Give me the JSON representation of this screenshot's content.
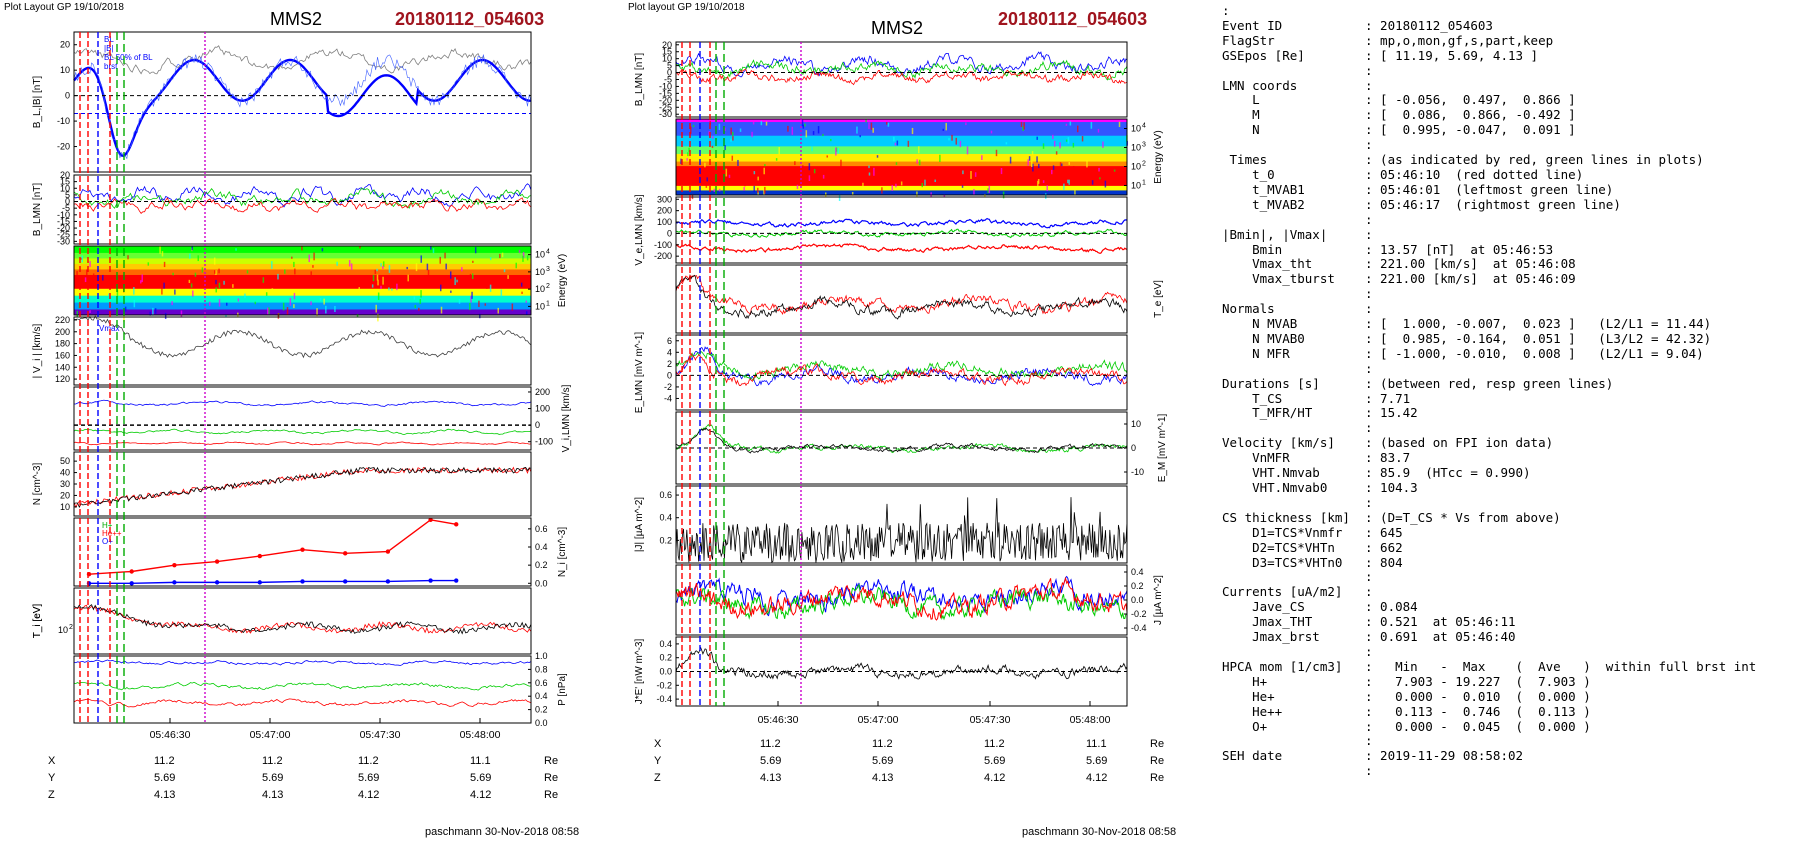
{
  "left_panel": {
    "header": "Plot Layout GP 19/10/2018",
    "spacecraft": "MMS2",
    "event": "20180112_054603",
    "footer": "paschmann 30-Nov-2018 08:58",
    "time_ticks": [
      "05:46:30",
      "05:47:00",
      "05:47:30",
      "05:48:00"
    ],
    "coords": {
      "rows": [
        {
          "label": "X",
          "values": [
            "11.2",
            "11.2",
            "11.2",
            "11.1"
          ],
          "unit": "Re"
        },
        {
          "label": "Y",
          "values": [
            "5.69",
            "5.69",
            "5.69",
            "5.69"
          ],
          "unit": "Re"
        },
        {
          "label": "Z",
          "values": [
            "4.13",
            "4.13",
            "4.12",
            "4.12"
          ],
          "unit": "Re"
        }
      ]
    }
  },
  "right_panel": {
    "header": "Plot layout GP 19/10/2018",
    "spacecraft": "MMS2",
    "event": "20180112_054603",
    "footer": "paschmann 30-Nov-2018 08:58",
    "time_ticks": [
      "05:46:30",
      "05:47:00",
      "05:47:30",
      "05:48:00"
    ],
    "coords": {
      "rows": [
        {
          "label": "X",
          "values": [
            "11.2",
            "11.2",
            "11.2",
            "11.1"
          ],
          "unit": "Re"
        },
        {
          "label": "Y",
          "values": [
            "5.69",
            "5.69",
            "5.69",
            "5.69"
          ],
          "unit": "Re"
        },
        {
          "label": "Z",
          "values": [
            "4.13",
            "4.13",
            "4.12",
            "4.12"
          ],
          "unit": "Re"
        }
      ]
    }
  },
  "colors": {
    "event_red": "#a0141e",
    "blue": "#0000ff",
    "red": "#ff0000",
    "green": "#00cc00",
    "magenta": "#cc00cc",
    "gray": "#808080"
  },
  "chart_data": [
    {
      "type": "line",
      "panel": "left",
      "ylabel": "B_L,|B| [nT]",
      "yticks": [
        "20",
        "10",
        "0",
        "-10",
        "-20"
      ],
      "ylim": [
        -30,
        25
      ],
      "series": [
        {
          "name": "BL",
          "color": "blue",
          "smooth": true
        },
        {
          "name": "|B|",
          "color": "gray"
        }
      ],
      "legend": [
        "BL",
        "|B|",
        "BL 50% of BL",
        "brst"
      ]
    },
    {
      "type": "line",
      "panel": "left",
      "ylabel": "B_LMN [nT]",
      "yticks": [
        "20",
        "15",
        "10",
        "5",
        "0",
        "-5",
        "-10",
        "-15",
        "-20",
        "-25",
        "-30"
      ],
      "ylim": [
        -32,
        20
      ],
      "series": [
        {
          "name": "L",
          "color": "blue"
        },
        {
          "name": "M",
          "color": "green"
        },
        {
          "name": "N",
          "color": "red"
        }
      ]
    },
    {
      "type": "heatmap",
      "panel": "left",
      "ylabel": "Energy (eV)",
      "yticks": [
        "10^4",
        "10^3",
        "10^2",
        "10^1"
      ]
    },
    {
      "type": "line",
      "panel": "left",
      "ylabel": "| V_i | [km/s]",
      "yticks": [
        "220",
        "200",
        "180",
        "160",
        "140",
        "120"
      ],
      "ylim": [
        110,
        225
      ],
      "legend": [
        "Vmax"
      ]
    },
    {
      "type": "line",
      "panel": "left",
      "ylabel": "V_i,LMN [km/s]",
      "yticks": [
        "200",
        "100",
        "0",
        "-100"
      ],
      "ylim": [
        -150,
        230
      ]
    },
    {
      "type": "line",
      "panel": "left",
      "ylabel": "N [cm^-3]",
      "yticks": [
        "50",
        "40",
        "30",
        "20",
        "10"
      ],
      "ylim": [
        2,
        58
      ]
    },
    {
      "type": "line",
      "panel": "left",
      "ylabel": "N_i [cm^-3]",
      "yticks": [
        "0.6",
        "0.4",
        "0.2",
        "0.0"
      ],
      "ylim": [
        -0.03,
        0.72
      ],
      "legend": [
        "H+",
        "He++",
        "O+"
      ],
      "series": [
        {
          "name": "He++",
          "color": "red",
          "x": [
            0,
            0.1,
            0.2,
            0.3,
            0.4,
            0.5,
            0.6,
            0.7,
            0.8,
            0.86
          ],
          "y": [
            0.1,
            0.13,
            0.2,
            0.24,
            0.3,
            0.37,
            0.33,
            0.35,
            0.7,
            0.65
          ]
        },
        {
          "name": "O+",
          "color": "blue",
          "x": [
            0,
            0.1,
            0.2,
            0.3,
            0.4,
            0.5,
            0.6,
            0.7,
            0.8,
            0.86
          ],
          "y": [
            0.0,
            0.0,
            0.01,
            0.01,
            0.01,
            0.02,
            0.02,
            0.02,
            0.03,
            0.03
          ]
        }
      ]
    },
    {
      "type": "line",
      "panel": "left",
      "ylabel": "T_i [eV]",
      "yticks": [
        "10^2"
      ]
    },
    {
      "type": "line",
      "panel": "left",
      "ylabel": "P [nPa]",
      "yticks": [
        "1.0",
        "0.8",
        "0.6",
        "0.4",
        "0.2",
        "0.0"
      ],
      "ylim": [
        0,
        1.0
      ]
    },
    {
      "type": "line",
      "panel": "right",
      "ylabel": "B_LMN [nT]",
      "yticks": [
        "20",
        "15",
        "10",
        "5",
        "0",
        "-5",
        "-10",
        "-15",
        "-20",
        "-25",
        "-30"
      ],
      "ylim": [
        -32,
        22
      ]
    },
    {
      "type": "heatmap",
      "panel": "right",
      "ylabel": "Energy (eV)",
      "yticks": [
        "10^4",
        "10^3",
        "10^2",
        "10^1"
      ]
    },
    {
      "type": "line",
      "panel": "right",
      "ylabel": "V_e,LMN [km/s]",
      "yticks": [
        "300",
        "200",
        "100",
        "0",
        "-100",
        "-200"
      ],
      "ylim": [
        -260,
        320
      ]
    },
    {
      "type": "line",
      "panel": "right",
      "ylabel": "T_e [eV]",
      "yticks": []
    },
    {
      "type": "line",
      "panel": "right",
      "ylabel": "E_LMN [mV m^-1]",
      "yticks": [
        "6",
        "4",
        "2",
        "0",
        "-2",
        "-4"
      ],
      "ylim": [
        -6,
        7
      ]
    },
    {
      "type": "line",
      "panel": "right",
      "ylabel": "E_M [mV m^-1]",
      "yticks": [
        "10",
        "0",
        "-10"
      ],
      "ylim": [
        -15,
        15
      ]
    },
    {
      "type": "line",
      "panel": "right",
      "ylabel": "|J| [µA m^-2]",
      "yticks": [
        "0.6",
        "0.4",
        "0.2"
      ],
      "ylim": [
        0,
        0.68
      ]
    },
    {
      "type": "line",
      "panel": "right",
      "ylabel": "J [µA m^-2]",
      "yticks": [
        "0.4",
        "0.2",
        "0.0",
        "-0.2",
        "-0.4"
      ],
      "ylim": [
        -0.5,
        0.5
      ]
    },
    {
      "type": "line",
      "panel": "right",
      "ylabel": "J*E' [nW m^-3]",
      "yticks": [
        "0.4",
        "0.2",
        "0.0",
        "-0.2",
        "-0.4"
      ],
      "ylim": [
        -0.5,
        0.5
      ]
    }
  ],
  "info_lines": [
    ":",
    "Event ID           : 20180112_054603",
    "FlagStr            : mp,o,mon,gf,s,part,keep",
    "GSEpos [Re]        : [ 11.19, 5.69, 4.13 ]",
    "                   :",
    "LMN coords         :",
    "    L              : [ -0.056,  0.497,  0.866 ]",
    "    M              : [  0.086,  0.866, -0.492 ]",
    "    N              : [  0.995, -0.047,  0.091 ]",
    "                   :",
    " Times             : (as indicated by red, green lines in plots)",
    "    t_0            : 05:46:10  (red dotted line)",
    "    t_MVAB1        : 05:46:01  (leftmost green line)",
    "    t_MVAB2        : 05:46:17  (rightmost green line)",
    "                   :",
    "|Bmin|, |Vmax|     :",
    "    Bmin           : 13.57 [nT]  at 05:46:53",
    "    Vmax_tht       : 221.00 [km/s]  at 05:46:08",
    "    Vmax_tburst    : 221.00 [km/s]  at 05:46:09",
    "                   :",
    "Normals            :",
    "    N MVAB         : [  1.000, -0.007,  0.023 ]   (L2/L1 = 11.44)",
    "    N MVAB0        : [  0.985, -0.164,  0.051 ]   (L3/L2 = 42.32)",
    "    N MFR          : [ -1.000, -0.010,  0.008 ]   (L2/L1 = 9.04)",
    "                   :",
    "Durations [s]      : (between red, resp green lines)",
    "    T_CS           : 7.71",
    "    T_MFR/HT       : 15.42",
    "                   :",
    "Velocity [km/s]    : (based on FPI ion data)",
    "    VnMFR          : 83.7",
    "    VHT.Nmvab      : 85.9  (HTcc = 0.990)",
    "    VHT.Nmvab0     : 104.3",
    "                   :",
    "CS thickness [km]  : (D=T_CS * Vs from above)",
    "    D1=TCS*Vnmfr   : 645",
    "    D2=TCS*VHTn    : 662",
    "    D3=TCS*VHTn0   : 804",
    "                   :",
    "Currents [uA/m2]   :",
    "    Jave_CS        : 0.084",
    "    Jmax_THT       : 0.521  at 05:46:11",
    "    Jmax_brst      : 0.691  at 05:46:40",
    "                   :",
    "HPCA mom [1/cm3]   :   Min   -  Max    (  Ave   )  within full brst int",
    "    H+             :   7.903 - 19.227  (  7.903 )",
    "    He+            :   0.000 -  0.010  (  0.000 )",
    "    He++           :   0.113 -  0.746  (  0.113 )",
    "    O+             :   0.000 -  0.045  (  0.000 )",
    "                   :",
    "SEH date           : 2019-11-29 08:58:02",
    "                   :"
  ]
}
